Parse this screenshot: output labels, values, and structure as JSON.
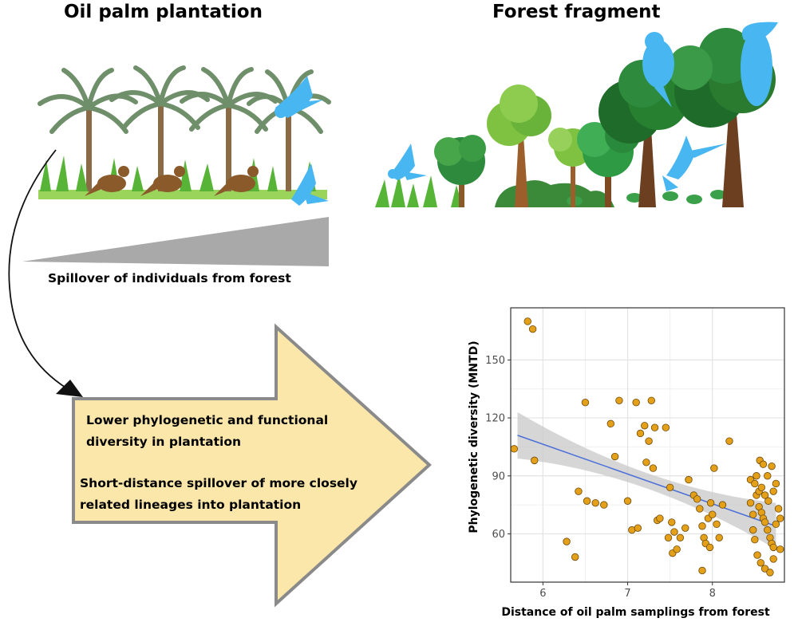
{
  "headings": {
    "plantation": "Oil palm plantation",
    "forest": "Forest fragment"
  },
  "gradient_label": "Spillover of individuals from forest",
  "arrow_box": {
    "line1": "Lower phylogenetic and functional",
    "line2": "diversity in plantation",
    "line3": "Short-distance spillover of more closely",
    "line4": "related lineages into plantation"
  },
  "colors": {
    "bird_blue": "#48b6f0",
    "bird_brown": "#8a5a2b",
    "arrow_fill": "#fbe7a9",
    "arrow_stroke": "#8a8a8a",
    "wedge": "#a9a9a9",
    "point_fill": "#e5a019",
    "trend_line": "#4a6fd8",
    "confidence_band": "#c8c8c8"
  },
  "icons": [
    "palm-tree-icon",
    "brown-bird-icon",
    "blue-bird-icon",
    "toucan-icon",
    "hummingbird-icon",
    "broadleaf-tree-icon",
    "bush-icon"
  ],
  "chart_data": {
    "type": "scatter",
    "xlabel": "Distance of oil palm samplings from forest",
    "ylabel": "Phylogenetic diversity (MNTD)",
    "xlim": [
      5.62,
      8.85
    ],
    "ylim": [
      35,
      177
    ],
    "xticks": [
      6,
      7,
      8
    ],
    "yticks": [
      60,
      90,
      120,
      150
    ],
    "grid": true,
    "legend": "none",
    "trend": {
      "x": [
        5.7,
        8.75
      ],
      "y": [
        111,
        64
      ],
      "band_half_width_ends": 12,
      "band_half_width_mid": 4
    },
    "points": [
      [
        5.82,
        170
      ],
      [
        5.88,
        166
      ],
      [
        5.66,
        104
      ],
      [
        5.9,
        98
      ],
      [
        6.28,
        56
      ],
      [
        6.38,
        48
      ],
      [
        6.42,
        82
      ],
      [
        6.5,
        128
      ],
      [
        6.52,
        77
      ],
      [
        6.62,
        76
      ],
      [
        6.72,
        75
      ],
      [
        6.8,
        117
      ],
      [
        6.85,
        100
      ],
      [
        6.9,
        129
      ],
      [
        7.0,
        77
      ],
      [
        7.05,
        62
      ],
      [
        7.1,
        128
      ],
      [
        7.15,
        112
      ],
      [
        7.2,
        116
      ],
      [
        7.25,
        108
      ],
      [
        7.22,
        97
      ],
      [
        7.3,
        94
      ],
      [
        7.28,
        129
      ],
      [
        7.32,
        115
      ],
      [
        7.35,
        67
      ],
      [
        7.12,
        63
      ],
      [
        7.38,
        68
      ],
      [
        7.45,
        115
      ],
      [
        7.5,
        84
      ],
      [
        7.52,
        66
      ],
      [
        7.55,
        61
      ],
      [
        7.48,
        58
      ],
      [
        7.53,
        50
      ],
      [
        7.58,
        52
      ],
      [
        7.62,
        58
      ],
      [
        7.68,
        63
      ],
      [
        7.72,
        88
      ],
      [
        7.78,
        80
      ],
      [
        7.82,
        78
      ],
      [
        7.85,
        73
      ],
      [
        7.88,
        64
      ],
      [
        7.9,
        58
      ],
      [
        7.92,
        55
      ],
      [
        7.95,
        68
      ],
      [
        7.98,
        76
      ],
      [
        8.0,
        70
      ],
      [
        8.02,
        94
      ],
      [
        8.05,
        65
      ],
      [
        8.08,
        58
      ],
      [
        8.12,
        75
      ],
      [
        7.97,
        53
      ],
      [
        7.88,
        41
      ],
      [
        8.2,
        108
      ],
      [
        8.45,
        88
      ],
      [
        8.5,
        86
      ],
      [
        8.52,
        80
      ],
      [
        8.55,
        74
      ],
      [
        8.58,
        71
      ],
      [
        8.6,
        68
      ],
      [
        8.62,
        66
      ],
      [
        8.65,
        62
      ],
      [
        8.68,
        58
      ],
      [
        8.7,
        55
      ],
      [
        8.72,
        53
      ],
      [
        8.48,
        62
      ],
      [
        8.5,
        57
      ],
      [
        8.53,
        49
      ],
      [
        8.56,
        98
      ],
      [
        8.6,
        96
      ],
      [
        8.65,
        90
      ],
      [
        8.7,
        95
      ],
      [
        8.72,
        82
      ],
      [
        8.75,
        86
      ],
      [
        8.78,
        73
      ],
      [
        8.8,
        68
      ],
      [
        8.45,
        76
      ],
      [
        8.48,
        70
      ],
      [
        8.57,
        45
      ],
      [
        8.62,
        42
      ],
      [
        8.68,
        40
      ],
      [
        8.72,
        47
      ],
      [
        8.8,
        52
      ],
      [
        8.75,
        65
      ],
      [
        8.55,
        82
      ],
      [
        8.62,
        80
      ],
      [
        8.66,
        77
      ],
      [
        8.52,
        90
      ],
      [
        8.58,
        84
      ]
    ]
  }
}
